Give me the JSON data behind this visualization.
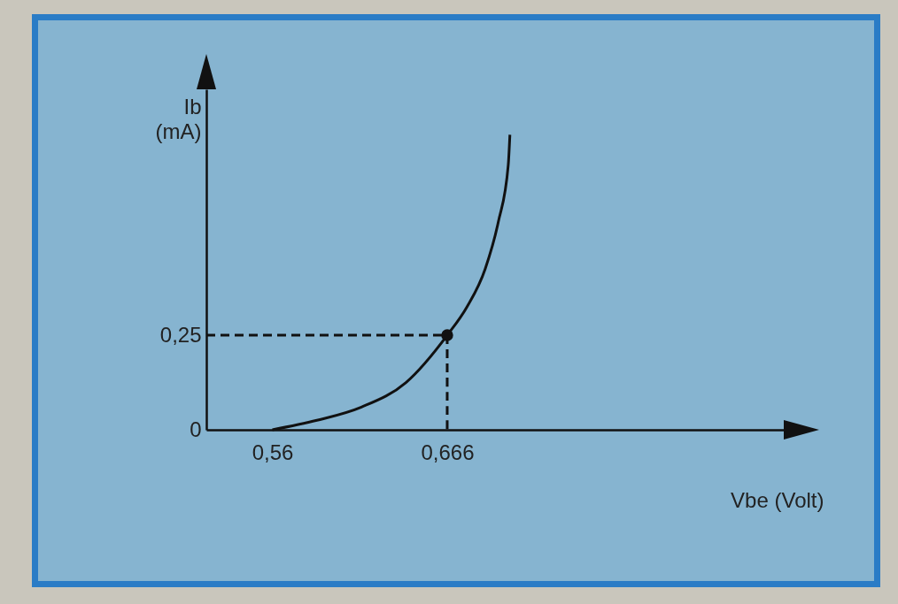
{
  "chart_data": {
    "type": "line",
    "xlabel": "Vbe (Volt)",
    "ylabel": "Ib (mA)",
    "xlim": [
      0.52,
      0.87
    ],
    "ylim": [
      0,
      0.9
    ],
    "xticks": [
      {
        "value": 0.56,
        "label": "0,56"
      },
      {
        "value": 0.666,
        "label": "0,666"
      }
    ],
    "yticks": [
      {
        "value": 0,
        "label": "0"
      },
      {
        "value": 0.25,
        "label": "0,25"
      }
    ],
    "series": [
      {
        "color": "#111111",
        "x": [
          0.56,
          0.587,
          0.614,
          0.641,
          0.666,
          0.678,
          0.689,
          0.697,
          0.703,
          0.704
        ],
        "values": [
          0,
          0.025,
          0.06,
          0.125,
          0.25,
          0.325,
          0.425,
          0.55,
          0.7,
          0.78
        ]
      },
      {
        "type": "line",
        "color": "#111111",
        "line_style": "dashed",
        "x": [
          0.52,
          0.666,
          0.666
        ],
        "values": [
          0.25,
          0.25,
          0
        ]
      },
      {
        "type": "scatter",
        "color": "#111111",
        "marker": "circle",
        "x": [
          0.666
        ],
        "values": [
          0.25
        ]
      }
    ]
  }
}
